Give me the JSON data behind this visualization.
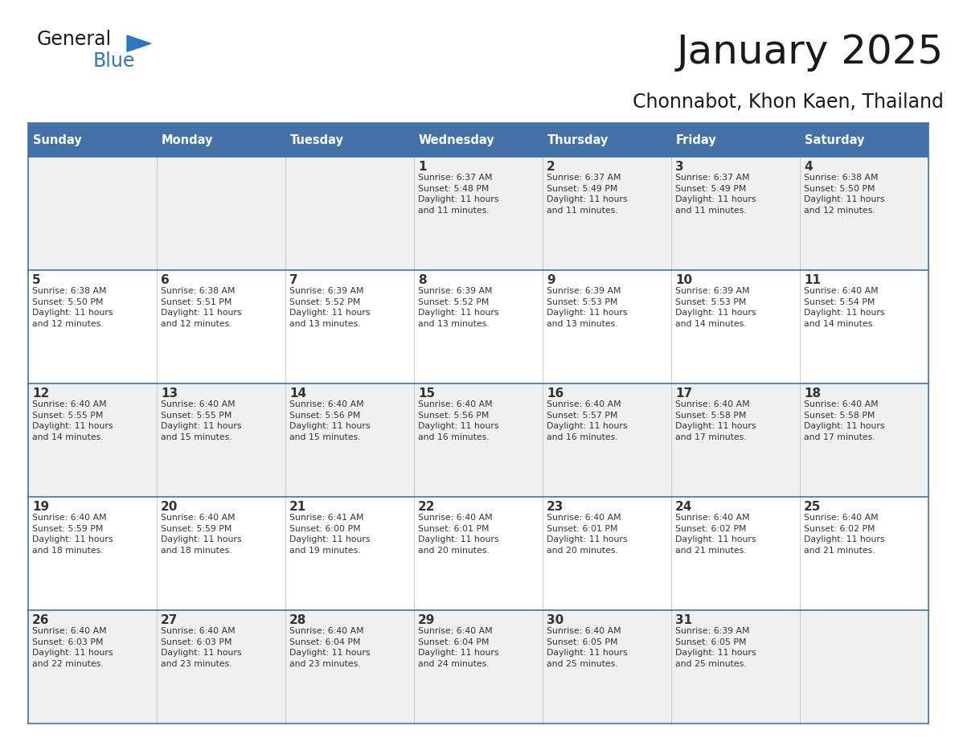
{
  "title": "January 2025",
  "subtitle": "Chonnabot, Khon Kaen, Thailand",
  "header_color": "#4472a8",
  "header_text_color": "#ffffff",
  "cell_bg_even": "#f0f0f0",
  "cell_bg_odd": "#ffffff",
  "text_color": "#333333",
  "line_color": "#4472a8",
  "days_of_week": [
    "Sunday",
    "Monday",
    "Tuesday",
    "Wednesday",
    "Thursday",
    "Friday",
    "Saturday"
  ],
  "weeks": [
    [
      {
        "day": "",
        "info": ""
      },
      {
        "day": "",
        "info": ""
      },
      {
        "day": "",
        "info": ""
      },
      {
        "day": "1",
        "info": "Sunrise: 6:37 AM\nSunset: 5:48 PM\nDaylight: 11 hours\nand 11 minutes."
      },
      {
        "day": "2",
        "info": "Sunrise: 6:37 AM\nSunset: 5:49 PM\nDaylight: 11 hours\nand 11 minutes."
      },
      {
        "day": "3",
        "info": "Sunrise: 6:37 AM\nSunset: 5:49 PM\nDaylight: 11 hours\nand 11 minutes."
      },
      {
        "day": "4",
        "info": "Sunrise: 6:38 AM\nSunset: 5:50 PM\nDaylight: 11 hours\nand 12 minutes."
      }
    ],
    [
      {
        "day": "5",
        "info": "Sunrise: 6:38 AM\nSunset: 5:50 PM\nDaylight: 11 hours\nand 12 minutes."
      },
      {
        "day": "6",
        "info": "Sunrise: 6:38 AM\nSunset: 5:51 PM\nDaylight: 11 hours\nand 12 minutes."
      },
      {
        "day": "7",
        "info": "Sunrise: 6:39 AM\nSunset: 5:52 PM\nDaylight: 11 hours\nand 13 minutes."
      },
      {
        "day": "8",
        "info": "Sunrise: 6:39 AM\nSunset: 5:52 PM\nDaylight: 11 hours\nand 13 minutes."
      },
      {
        "day": "9",
        "info": "Sunrise: 6:39 AM\nSunset: 5:53 PM\nDaylight: 11 hours\nand 13 minutes."
      },
      {
        "day": "10",
        "info": "Sunrise: 6:39 AM\nSunset: 5:53 PM\nDaylight: 11 hours\nand 14 minutes."
      },
      {
        "day": "11",
        "info": "Sunrise: 6:40 AM\nSunset: 5:54 PM\nDaylight: 11 hours\nand 14 minutes."
      }
    ],
    [
      {
        "day": "12",
        "info": "Sunrise: 6:40 AM\nSunset: 5:55 PM\nDaylight: 11 hours\nand 14 minutes."
      },
      {
        "day": "13",
        "info": "Sunrise: 6:40 AM\nSunset: 5:55 PM\nDaylight: 11 hours\nand 15 minutes."
      },
      {
        "day": "14",
        "info": "Sunrise: 6:40 AM\nSunset: 5:56 PM\nDaylight: 11 hours\nand 15 minutes."
      },
      {
        "day": "15",
        "info": "Sunrise: 6:40 AM\nSunset: 5:56 PM\nDaylight: 11 hours\nand 16 minutes."
      },
      {
        "day": "16",
        "info": "Sunrise: 6:40 AM\nSunset: 5:57 PM\nDaylight: 11 hours\nand 16 minutes."
      },
      {
        "day": "17",
        "info": "Sunrise: 6:40 AM\nSunset: 5:58 PM\nDaylight: 11 hours\nand 17 minutes."
      },
      {
        "day": "18",
        "info": "Sunrise: 6:40 AM\nSunset: 5:58 PM\nDaylight: 11 hours\nand 17 minutes."
      }
    ],
    [
      {
        "day": "19",
        "info": "Sunrise: 6:40 AM\nSunset: 5:59 PM\nDaylight: 11 hours\nand 18 minutes."
      },
      {
        "day": "20",
        "info": "Sunrise: 6:40 AM\nSunset: 5:59 PM\nDaylight: 11 hours\nand 18 minutes."
      },
      {
        "day": "21",
        "info": "Sunrise: 6:41 AM\nSunset: 6:00 PM\nDaylight: 11 hours\nand 19 minutes."
      },
      {
        "day": "22",
        "info": "Sunrise: 6:40 AM\nSunset: 6:01 PM\nDaylight: 11 hours\nand 20 minutes."
      },
      {
        "day": "23",
        "info": "Sunrise: 6:40 AM\nSunset: 6:01 PM\nDaylight: 11 hours\nand 20 minutes."
      },
      {
        "day": "24",
        "info": "Sunrise: 6:40 AM\nSunset: 6:02 PM\nDaylight: 11 hours\nand 21 minutes."
      },
      {
        "day": "25",
        "info": "Sunrise: 6:40 AM\nSunset: 6:02 PM\nDaylight: 11 hours\nand 21 minutes."
      }
    ],
    [
      {
        "day": "26",
        "info": "Sunrise: 6:40 AM\nSunset: 6:03 PM\nDaylight: 11 hours\nand 22 minutes."
      },
      {
        "day": "27",
        "info": "Sunrise: 6:40 AM\nSunset: 6:03 PM\nDaylight: 11 hours\nand 23 minutes."
      },
      {
        "day": "28",
        "info": "Sunrise: 6:40 AM\nSunset: 6:04 PM\nDaylight: 11 hours\nand 23 minutes."
      },
      {
        "day": "29",
        "info": "Sunrise: 6:40 AM\nSunset: 6:04 PM\nDaylight: 11 hours\nand 24 minutes."
      },
      {
        "day": "30",
        "info": "Sunrise: 6:40 AM\nSunset: 6:05 PM\nDaylight: 11 hours\nand 25 minutes."
      },
      {
        "day": "31",
        "info": "Sunrise: 6:39 AM\nSunset: 6:05 PM\nDaylight: 11 hours\nand 25 minutes."
      },
      {
        "day": "",
        "info": ""
      }
    ]
  ],
  "logo_general_color": "#1a1a1a",
  "logo_blue_color": "#2e75c3",
  "logo_triangle_color": "#2e75c3"
}
